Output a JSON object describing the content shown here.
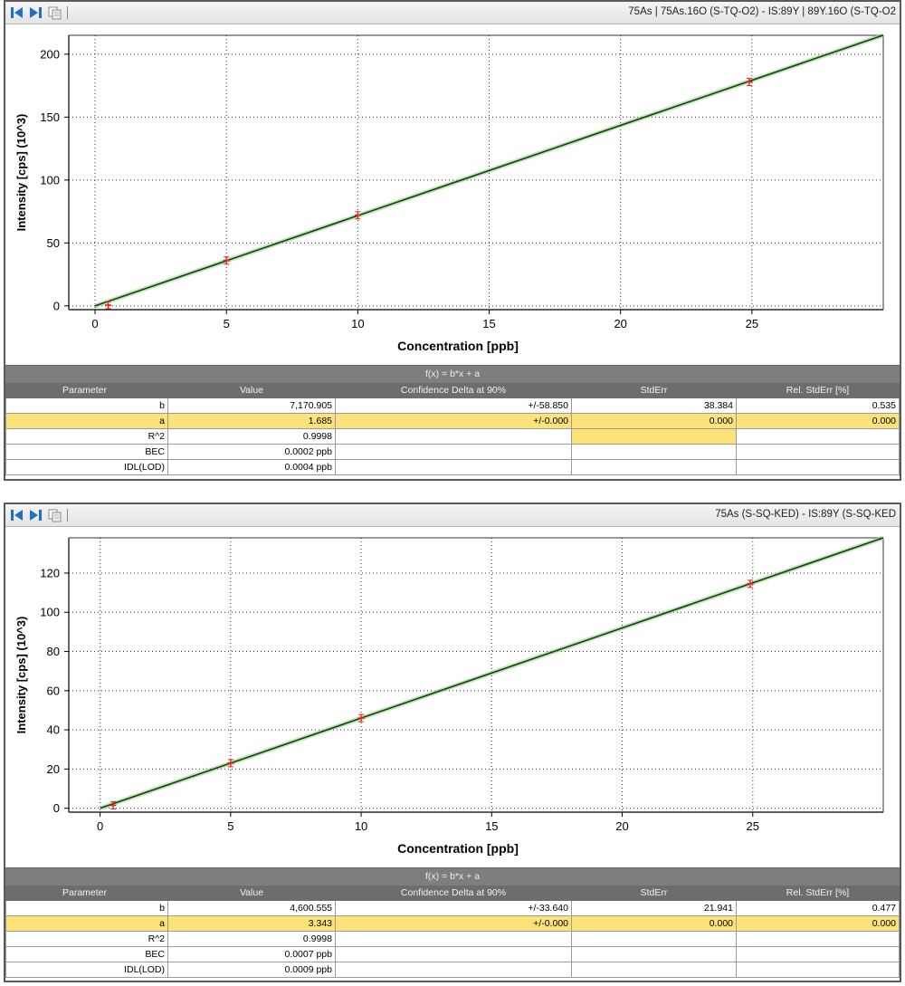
{
  "toolbar_icons": [
    "first-icon",
    "next-icon",
    "copy-icon"
  ],
  "panels": [
    {
      "title": "75As | 75As.16O (S-TQ-O2) - IS:89Y | 89Y.16O (S-TQ-O2",
      "function": "f(x) = b*x + a",
      "columns": [
        "Parameter",
        "Value",
        "Confidence Delta at 90%",
        "StdErr",
        "Rel. StdErr [%]"
      ],
      "rows": [
        {
          "param": "b",
          "value": "7,170.905",
          "conf": "+/-58.850",
          "stderr": "38.384",
          "rel": "0.535"
        },
        {
          "param": "a",
          "value": "1.685",
          "conf": "+/-0.000",
          "stderr": "0.000",
          "rel": "0.000"
        },
        {
          "param": "R^2",
          "value": "0.9998",
          "conf": "",
          "stderr": "",
          "rel": ""
        },
        {
          "param": "BEC",
          "value": "0.0002 ppb",
          "conf": "",
          "stderr": "",
          "rel": ""
        },
        {
          "param": "IDL(LOD)",
          "value": "0.0004 ppb",
          "conf": "",
          "stderr": "",
          "rel": ""
        }
      ],
      "chart_data": {
        "type": "scatter",
        "xlabel": "Concentration [ppb]",
        "ylabel": "Intensity [cps] (10^3)",
        "xlim": [
          -1,
          30
        ],
        "ylim": [
          -3,
          215
        ],
        "xticks": [
          0,
          5,
          10,
          15,
          20,
          25
        ],
        "yticks": [
          0,
          50,
          100,
          150,
          200
        ],
        "grid": true,
        "points": [
          {
            "x": 0.5,
            "y": 0.6
          },
          {
            "x": 5,
            "y": 36
          },
          {
            "x": 10,
            "y": 72
          },
          {
            "x": 24.9,
            "y": 178
          }
        ],
        "fit": {
          "slope": 7.170905,
          "intercept": 0.001685,
          "x_range": [
            0,
            30
          ]
        },
        "colors": {
          "fit": "#1a3a1a",
          "band": "#8fd67f",
          "points": "#e8201a"
        }
      }
    },
    {
      "title": "75As (S-SQ-KED) - IS:89Y (S-SQ-KED",
      "function": "f(x) = b*x + a",
      "columns": [
        "Parameter",
        "Value",
        "Confidence Delta at 90%",
        "StdErr",
        "Rel. StdErr [%]"
      ],
      "rows": [
        {
          "param": "b",
          "value": "4,600.555",
          "conf": "+/-33.640",
          "stderr": "21.941",
          "rel": "0.477"
        },
        {
          "param": "a",
          "value": "3.343",
          "conf": "+/-0.000",
          "stderr": "0.000",
          "rel": "0.000"
        },
        {
          "param": "R^2",
          "value": "0.9998",
          "conf": "",
          "stderr": "",
          "rel": ""
        },
        {
          "param": "BEC",
          "value": "0.0007 ppb",
          "conf": "",
          "stderr": "",
          "rel": ""
        },
        {
          "param": "IDL(LOD)",
          "value": "0.0009 ppb",
          "conf": "",
          "stderr": "",
          "rel": ""
        }
      ],
      "chart_data": {
        "type": "scatter",
        "xlabel": "Concentration [ppb]",
        "ylabel": "Intensity [cps] (10^3)",
        "xlim": [
          -1.2,
          30
        ],
        "ylim": [
          -2,
          138
        ],
        "xticks": [
          0,
          5,
          10,
          15,
          20,
          25
        ],
        "yticks": [
          0,
          20,
          40,
          60,
          80,
          100,
          120
        ],
        "grid": true,
        "points": [
          {
            "x": 0.5,
            "y": 1.5
          },
          {
            "x": 5,
            "y": 23
          },
          {
            "x": 10,
            "y": 46
          },
          {
            "x": 24.9,
            "y": 114.5
          }
        ],
        "fit": {
          "slope": 4.600555,
          "intercept": 0.003343,
          "x_range": [
            0,
            30
          ]
        },
        "colors": {
          "fit": "#1a3a1a",
          "band": "#8fd67f",
          "points": "#e8201a"
        }
      }
    }
  ]
}
